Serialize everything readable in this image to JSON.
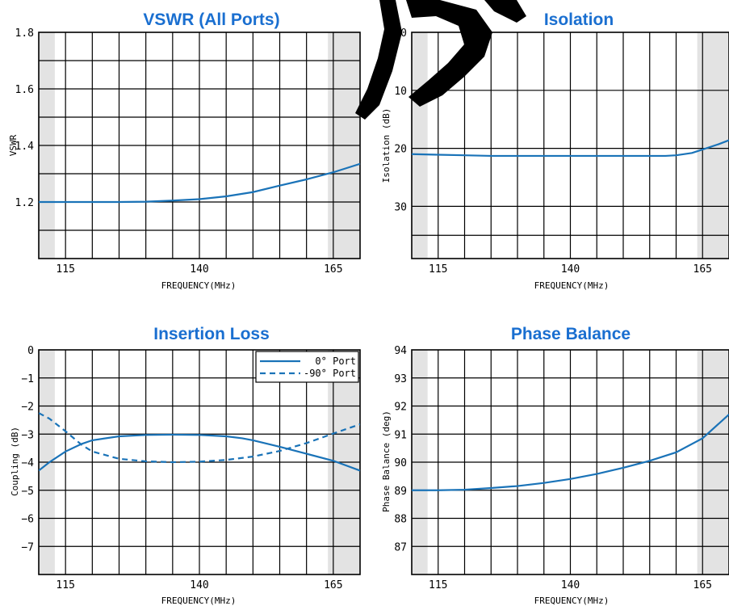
{
  "colors": {
    "title": "#1a6fd0",
    "series": "#1a73b8",
    "shade": "#e3e3e3",
    "grid": "#000000"
  },
  "chart_data": [
    {
      "type": "line",
      "title": "VSWR (All Ports)",
      "xlabel": "FREQUENCY(MHz)",
      "ylabel": "VSWR",
      "xlim": [
        110,
        170
      ],
      "ylim": [
        1.0,
        1.8
      ],
      "x_ticks": [
        115,
        140,
        165
      ],
      "y_ticks": [
        1.2,
        1.4,
        1.6,
        1.8
      ],
      "y_tick_labels": [
        "1.2",
        "1.4",
        "1.6",
        "1.8"
      ],
      "grid": true,
      "shaded_bands": [
        [
          110,
          113
        ],
        [
          164,
          170
        ]
      ],
      "series": [
        {
          "x": [
            110,
            115,
            120,
            125,
            130,
            135,
            140,
            145,
            150,
            155,
            160,
            165,
            170
          ],
          "y": [
            1.2,
            1.2,
            1.2,
            1.2,
            1.201,
            1.205,
            1.21,
            1.22,
            1.235,
            1.258,
            1.28,
            1.305,
            1.335
          ],
          "dash": "solid"
        }
      ]
    },
    {
      "type": "line",
      "title": "Isolation",
      "xlabel": "FREQUENCY(MHz)",
      "ylabel": "Isolation (dB)",
      "xlim": [
        110,
        170
      ],
      "ylim": [
        -39,
        0
      ],
      "y_inverted": true,
      "x_ticks": [
        115,
        140,
        165
      ],
      "y_ticks": [
        0,
        -10,
        -20,
        -30
      ],
      "y_tick_labels": [
        "0",
        "10",
        "20",
        "30"
      ],
      "grid": true,
      "shaded_bands": [
        [
          110,
          113
        ],
        [
          164,
          170
        ]
      ],
      "series": [
        {
          "x": [
            110,
            115,
            120,
            125,
            130,
            135,
            140,
            145,
            150,
            155,
            158,
            160,
            163,
            165,
            168,
            170
          ],
          "y": [
            -21,
            -21.1,
            -21.2,
            -21.3,
            -21.3,
            -21.3,
            -21.3,
            -21.3,
            -21.3,
            -21.3,
            -21.3,
            -21.2,
            -20.8,
            -20.2,
            -19.3,
            -18.6
          ],
          "dash": "solid"
        }
      ]
    },
    {
      "type": "line",
      "title": "Insertion Loss",
      "xlabel": "FREQUENCY(MHz)",
      "ylabel": "Coupling (dB)",
      "xlim": [
        110,
        170
      ],
      "ylim": [
        -8,
        0
      ],
      "x_ticks": [
        115,
        140,
        165
      ],
      "y_ticks": [
        0,
        -1,
        -2,
        -3,
        -4,
        -5,
        -6,
        -7
      ],
      "y_tick_labels": [
        "0",
        "−1",
        "−2",
        "−3",
        "−4",
        "−5",
        "−6",
        "−7"
      ],
      "grid": true,
      "legend": "top-right",
      "shaded_bands": [
        [
          110,
          113
        ],
        [
          164,
          170
        ]
      ],
      "series": [
        {
          "name": "0° Port",
          "x": [
            110,
            112,
            115,
            118,
            120,
            125,
            130,
            135,
            140,
            145,
            148,
            150,
            155,
            160,
            165,
            170
          ],
          "y": [
            -4.3,
            -4.0,
            -3.62,
            -3.35,
            -3.22,
            -3.08,
            -3.03,
            -3.02,
            -3.03,
            -3.08,
            -3.15,
            -3.22,
            -3.45,
            -3.7,
            -3.95,
            -4.3
          ],
          "dash": "solid"
        },
        {
          "name": "-90° Port",
          "x": [
            110,
            112,
            115,
            118,
            120,
            125,
            130,
            135,
            140,
            145,
            150,
            155,
            160,
            165,
            170
          ],
          "y": [
            -2.25,
            -2.45,
            -2.9,
            -3.38,
            -3.62,
            -3.88,
            -3.97,
            -4.0,
            -3.98,
            -3.92,
            -3.8,
            -3.6,
            -3.32,
            -2.98,
            -2.65
          ],
          "dash": "dashed"
        }
      ]
    },
    {
      "type": "line",
      "title": "Phase Balance",
      "xlabel": "FREQUENCY(MHz)",
      "ylabel": "Phase Balance (deg)",
      "xlim": [
        110,
        170
      ],
      "ylim": [
        86,
        94
      ],
      "x_ticks": [
        115,
        140,
        165
      ],
      "y_ticks": [
        87,
        88,
        89,
        90,
        91,
        92,
        93,
        94
      ],
      "y_tick_labels": [
        "87",
        "88",
        "89",
        "90",
        "91",
        "92",
        "93",
        "94"
      ],
      "grid": true,
      "shaded_bands": [
        [
          110,
          113
        ],
        [
          164,
          170
        ]
      ],
      "series": [
        {
          "x": [
            110,
            115,
            120,
            125,
            130,
            135,
            140,
            145,
            150,
            155,
            160,
            165,
            170
          ],
          "y": [
            89.0,
            89.0,
            89.02,
            89.08,
            89.15,
            89.26,
            89.4,
            89.58,
            89.8,
            90.05,
            90.35,
            90.85,
            91.7
          ],
          "dash": "solid"
        }
      ]
    }
  ]
}
